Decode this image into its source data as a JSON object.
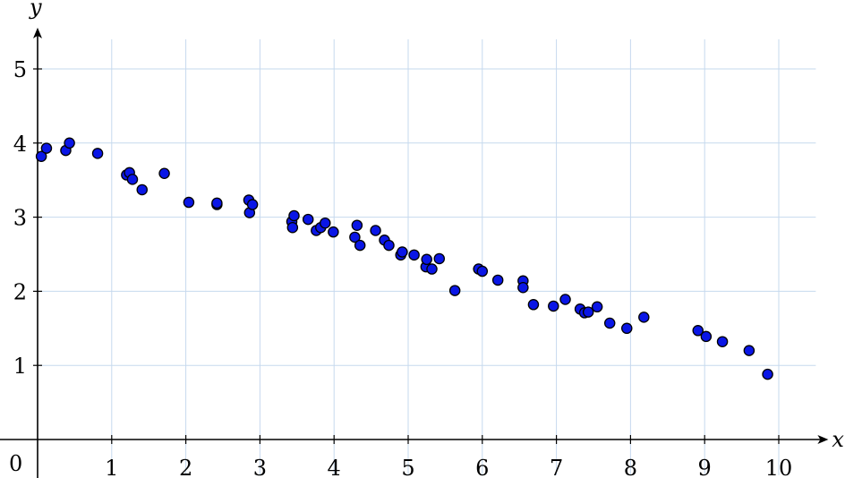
{
  "chart_data": {
    "type": "scatter",
    "xlabel": "x",
    "ylabel": "y",
    "origin_label": "0",
    "xlim": [
      0,
      10.5
    ],
    "ylim": [
      0,
      5.4
    ],
    "xticks": [
      1,
      2,
      3,
      4,
      5,
      6,
      7,
      8,
      9,
      10
    ],
    "yticks": [
      1,
      2,
      3,
      4,
      5
    ],
    "grid": true,
    "point_color": "#0a16e6",
    "grid_color": "#c6d9ee",
    "points": [
      {
        "x": 0.05,
        "y": 3.82
      },
      {
        "x": 0.12,
        "y": 3.93
      },
      {
        "x": 0.38,
        "y": 3.9
      },
      {
        "x": 0.43,
        "y": 4.0
      },
      {
        "x": 0.81,
        "y": 3.86
      },
      {
        "x": 1.2,
        "y": 3.57
      },
      {
        "x": 1.24,
        "y": 3.6
      },
      {
        "x": 1.28,
        "y": 3.51
      },
      {
        "x": 1.41,
        "y": 3.37
      },
      {
        "x": 1.71,
        "y": 3.59
      },
      {
        "x": 2.04,
        "y": 3.2
      },
      {
        "x": 2.42,
        "y": 3.17
      },
      {
        "x": 2.42,
        "y": 3.19
      },
      {
        "x": 2.85,
        "y": 3.23
      },
      {
        "x": 2.86,
        "y": 3.06
      },
      {
        "x": 2.9,
        "y": 3.17
      },
      {
        "x": 3.43,
        "y": 2.94
      },
      {
        "x": 3.44,
        "y": 2.86
      },
      {
        "x": 3.46,
        "y": 3.02
      },
      {
        "x": 3.65,
        "y": 2.97
      },
      {
        "x": 3.76,
        "y": 2.82
      },
      {
        "x": 3.82,
        "y": 2.86
      },
      {
        "x": 3.88,
        "y": 2.92
      },
      {
        "x": 3.99,
        "y": 2.8
      },
      {
        "x": 4.28,
        "y": 2.73
      },
      {
        "x": 4.31,
        "y": 2.89
      },
      {
        "x": 4.35,
        "y": 2.62
      },
      {
        "x": 4.56,
        "y": 2.82
      },
      {
        "x": 4.68,
        "y": 2.69
      },
      {
        "x": 4.74,
        "y": 2.62
      },
      {
        "x": 4.9,
        "y": 2.49
      },
      {
        "x": 4.92,
        "y": 2.53
      },
      {
        "x": 5.08,
        "y": 2.49
      },
      {
        "x": 5.24,
        "y": 2.33
      },
      {
        "x": 5.25,
        "y": 2.43
      },
      {
        "x": 5.32,
        "y": 2.3
      },
      {
        "x": 5.42,
        "y": 2.44
      },
      {
        "x": 5.63,
        "y": 2.01
      },
      {
        "x": 5.95,
        "y": 2.3
      },
      {
        "x": 6.0,
        "y": 2.27
      },
      {
        "x": 6.21,
        "y": 2.15
      },
      {
        "x": 6.55,
        "y": 2.14
      },
      {
        "x": 6.55,
        "y": 2.05
      },
      {
        "x": 6.69,
        "y": 1.82
      },
      {
        "x": 6.96,
        "y": 1.8
      },
      {
        "x": 7.12,
        "y": 1.89
      },
      {
        "x": 7.32,
        "y": 1.76
      },
      {
        "x": 7.38,
        "y": 1.71
      },
      {
        "x": 7.43,
        "y": 1.72
      },
      {
        "x": 7.55,
        "y": 1.79
      },
      {
        "x": 7.72,
        "y": 1.57
      },
      {
        "x": 7.95,
        "y": 1.5
      },
      {
        "x": 8.18,
        "y": 1.65
      },
      {
        "x": 8.91,
        "y": 1.47
      },
      {
        "x": 9.02,
        "y": 1.39
      },
      {
        "x": 9.24,
        "y": 1.32
      },
      {
        "x": 9.6,
        "y": 1.2
      },
      {
        "x": 9.85,
        "y": 0.88
      }
    ]
  }
}
